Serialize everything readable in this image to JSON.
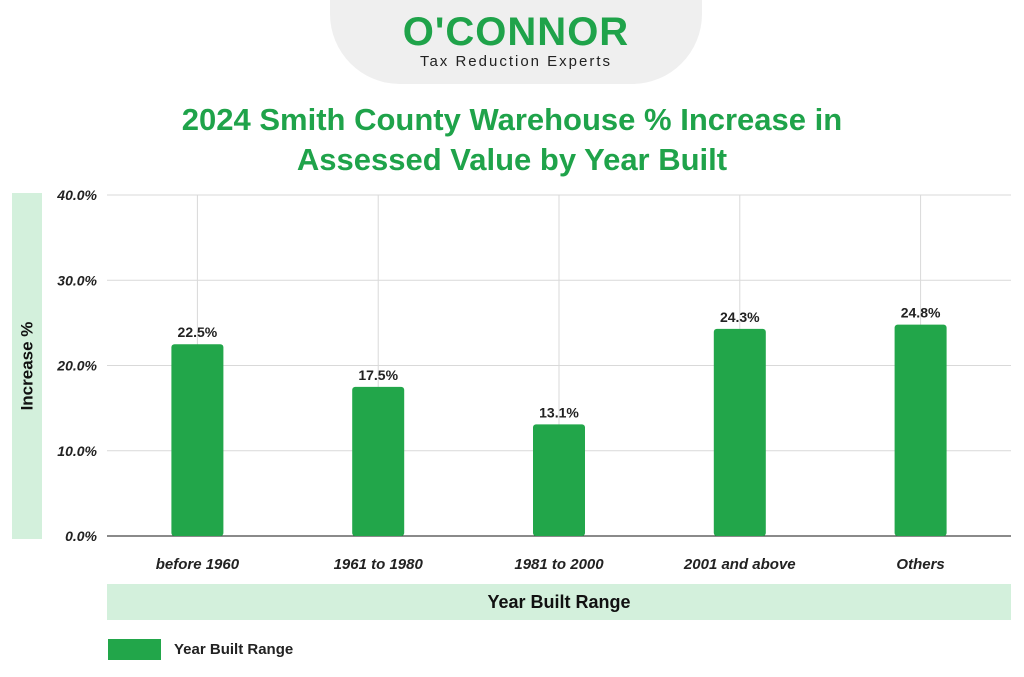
{
  "logo": {
    "name": "O'CONNOR",
    "tagline": "Tax Reduction Experts"
  },
  "colors": {
    "brand": "#1fa34a",
    "bar": "#22a64a",
    "band": "#d3f0dc",
    "grid": "#d9d9d9"
  },
  "chart_data": {
    "type": "bar",
    "title_line1": "2024 Smith County Warehouse % Increase in",
    "title_line2": "Assessed Value by Year Built",
    "xlabel": "Year Built Range",
    "ylabel": "Increase %",
    "categories": [
      "before 1960",
      "1961 to 1980",
      "1981 to 2000",
      "2001 and above",
      "Others"
    ],
    "values": [
      22.5,
      17.5,
      13.1,
      24.3,
      24.8
    ],
    "data_labels": [
      "22.5%",
      "17.5%",
      "13.1%",
      "24.3%",
      "24.8%"
    ],
    "yticks": [
      0,
      10,
      20,
      30,
      40
    ],
    "ytick_labels": [
      "0.0%",
      "10.0%",
      "20.0%",
      "30.0%",
      "40.0%"
    ],
    "ylim": [
      0,
      40
    ],
    "grid": true,
    "legend": {
      "label": "Year Built Range",
      "position": "bottom-left"
    }
  }
}
